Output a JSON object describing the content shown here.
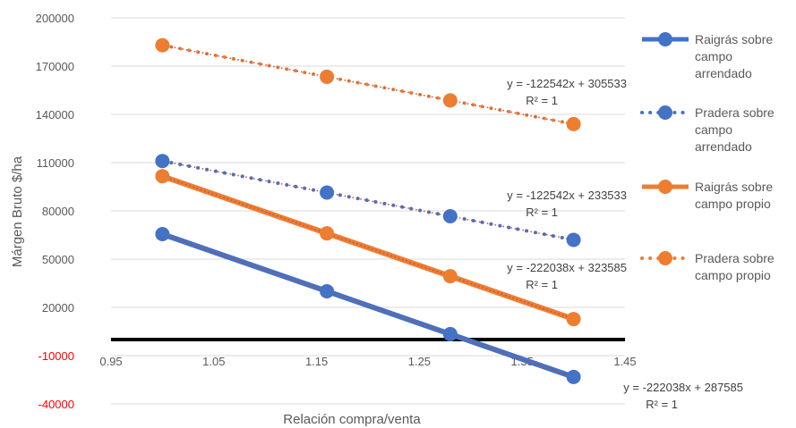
{
  "chart_data": {
    "type": "scatter",
    "title": "",
    "xlabel": "Relación compra/venta",
    "ylabel": "Márgen Bruto $/ha",
    "xlim": [
      0.95,
      1.45
    ],
    "ylim": [
      -40000,
      200000
    ],
    "x_ticks": [
      "0.95",
      "1.05",
      "1.15",
      "1.25",
      "1.35",
      "1.45"
    ],
    "y_ticks": [
      "200000",
      "170000",
      "140000",
      "110000",
      "80000",
      "50000",
      "20000",
      "-10000",
      "-40000"
    ],
    "grid": "horizontal",
    "legend_position": "right",
    "colors": {
      "blue": "#4472c4",
      "orange": "#ed7d31",
      "trend": "#c0504d",
      "axis": "#000000",
      "negative_tick": "#ff0000"
    },
    "series": [
      {
        "name": "Raigrás sobre campo arrendado",
        "color": "#4472c4",
        "style": "solid",
        "x": [
          1.0,
          1.16,
          1.28,
          1.4
        ],
        "y": [
          65547,
          30021,
          3377,
          -23268
        ],
        "trendline": {
          "equation": "y = -222038x + 287585",
          "r2": "R² = 1"
        }
      },
      {
        "name": "Pradera sobre campo arrendado",
        "color": "#4472c4",
        "style": "dotted",
        "x": [
          1.0,
          1.16,
          1.28,
          1.4
        ],
        "y": [
          110991,
          91384,
          76679,
          61974
        ],
        "trendline": {
          "equation": "y = -122542x + 233533",
          "r2": "R² = 1"
        }
      },
      {
        "name": "Raigrás sobre campo propio",
        "color": "#ed7d31",
        "style": "solid",
        "x": [
          1.0,
          1.16,
          1.28,
          1.4
        ],
        "y": [
          101547,
          66021,
          39377,
          12732
        ],
        "trendline": {
          "equation": "y = -222038x + 323585",
          "r2": "R² = 1"
        }
      },
      {
        "name": "Pradera sobre campo propio",
        "color": "#ed7d31",
        "style": "dotted",
        "x": [
          1.0,
          1.16,
          1.28,
          1.4
        ],
        "y": [
          182991,
          163384,
          148679,
          133974
        ],
        "trendline": {
          "equation": "y = -122542x + 305533",
          "r2": "R² = 1"
        }
      }
    ],
    "legend": [
      {
        "line1": "Raigrás sobre",
        "line2": "campo",
        "line3": "arrendado"
      },
      {
        "line1": "Pradera sobre",
        "line2": "campo",
        "line3": "arrendado"
      },
      {
        "line1": "Raigrás sobre",
        "line2": "campo propio",
        "line3": ""
      },
      {
        "line1": "Pradera sobre",
        "line2": "campo propio",
        "line3": ""
      }
    ]
  }
}
